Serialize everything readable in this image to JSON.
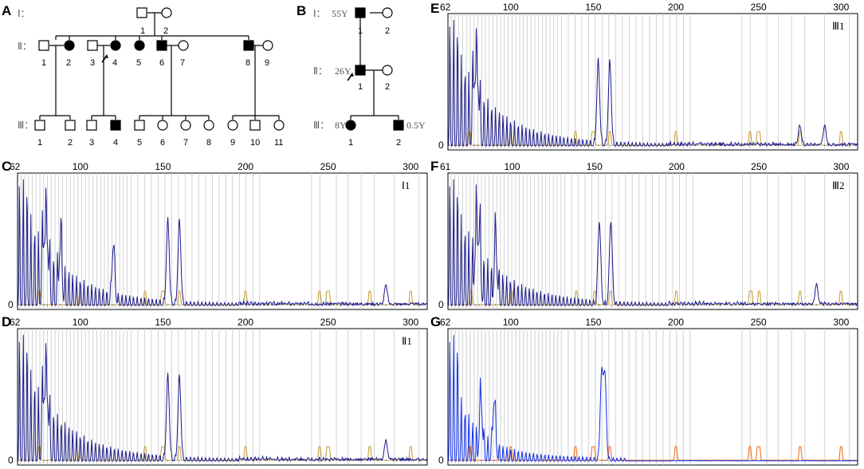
{
  "figure": {
    "panel_labels": [
      "A",
      "B",
      "C",
      "D",
      "E",
      "F",
      "G"
    ],
    "pedigree_a": {
      "generations": [
        "Ⅰ：",
        "Ⅱ：",
        "Ⅲ："
      ],
      "gen1_ids": [
        "1",
        "2"
      ],
      "gen2_ids": [
        "1",
        "2",
        "3",
        "4",
        "5",
        "6",
        "7",
        "8",
        "9"
      ],
      "gen3_ids": [
        "1",
        "2",
        "3",
        "4",
        "5",
        "6",
        "7",
        "8",
        "9",
        "10",
        "11"
      ]
    },
    "pedigree_b": {
      "generations": [
        "Ⅰ：",
        "Ⅱ：",
        "Ⅲ："
      ],
      "ages": [
        "55Y",
        "26Y",
        "8Y",
        "0.5Y"
      ],
      "gen1_ids": [
        "1",
        "2"
      ],
      "gen2_ids": [
        "1",
        "2"
      ],
      "gen3_ids": [
        "1",
        "2"
      ]
    },
    "colors": {
      "trace": "#1a1a8c",
      "trace_g": "#1030e8",
      "size_std": "#c8a040",
      "size_std_g": "#f07020",
      "grid": "#c8c8c8"
    }
  },
  "chart_data": [
    {
      "panel": "C",
      "type": "line",
      "sample": "Ⅰ1",
      "x_ticks": [
        "62",
        "100",
        "150",
        "200",
        "250",
        "300"
      ],
      "xlim": [
        62,
        310
      ],
      "y_zero_label": "0",
      "peak_sizes": [
        78,
        80,
        88,
        120,
        153,
        160,
        285
      ]
    },
    {
      "panel": "D",
      "type": "line",
      "sample": "Ⅱ1",
      "x_ticks": [
        "62",
        "100",
        "150",
        "200",
        "250",
        "300"
      ],
      "xlim": [
        62,
        310
      ],
      "y_zero_label": "0",
      "peak_sizes": [
        78,
        80,
        153,
        160,
        285
      ]
    },
    {
      "panel": "E",
      "type": "line",
      "sample": "Ⅲ1",
      "x_ticks": [
        "62",
        "100",
        "150",
        "200",
        "250",
        "300"
      ],
      "xlim": [
        62,
        310
      ],
      "y_zero_label": "0",
      "peak_sizes": [
        78,
        80,
        153,
        160,
        275,
        290
      ]
    },
    {
      "panel": "F",
      "type": "line",
      "sample": "Ⅲ2",
      "x_ticks": [
        "61",
        "100",
        "150",
        "200",
        "250",
        "300"
      ],
      "xlim": [
        61,
        310
      ],
      "y_zero_label": "0",
      "peak_sizes": [
        78,
        80,
        90,
        153,
        160,
        285
      ]
    },
    {
      "panel": "G",
      "type": "line",
      "sample": "",
      "x_ticks": [
        "62",
        "100",
        "150",
        "200",
        "250",
        "300"
      ],
      "xlim": [
        62,
        310
      ],
      "y_zero_label": "0",
      "peak_sizes": [
        82,
        90,
        155,
        157
      ]
    }
  ]
}
